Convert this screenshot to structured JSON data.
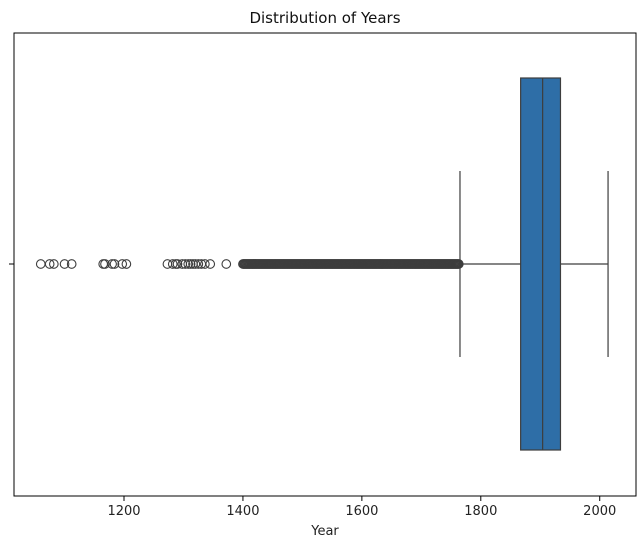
{
  "chart_data": {
    "type": "boxplot",
    "title": "Distribution of Years",
    "xlabel": "Year",
    "ylabel": "",
    "orientation": "horizontal",
    "xlim": [
      1015,
      2061
    ],
    "xticks": [
      1200,
      1400,
      1600,
      1800,
      2000
    ],
    "xtick_labels": [
      "1200",
      "1400",
      "1600",
      "1800",
      "2000"
    ],
    "grid": false,
    "box": {
      "whisker_low": 1765,
      "q1": 1867,
      "median": 1904,
      "q3": 1934,
      "whisker_high": 2014,
      "color": "#2e6ea7"
    },
    "outliers_sparse": [
      1060,
      1075,
      1082,
      1100,
      1112,
      1165,
      1168,
      1180,
      1184,
      1197,
      1204,
      1273,
      1282,
      1287,
      1290,
      1298,
      1303,
      1308,
      1312,
      1316,
      1320,
      1325,
      1330,
      1336,
      1345,
      1372
    ],
    "outliers_dense_range": [
      1400,
      1763
    ]
  }
}
